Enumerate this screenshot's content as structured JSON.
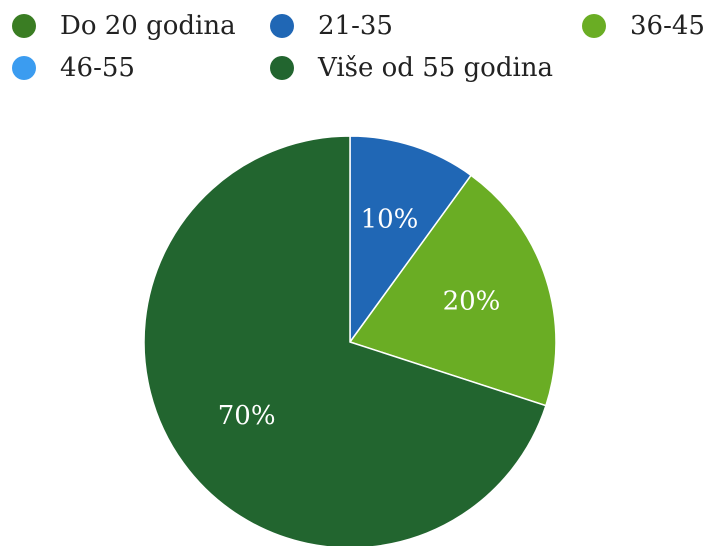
{
  "chart_data": {
    "type": "pie",
    "categories": [
      "Do 20 godina",
      "21-35",
      "36-45",
      "46-55",
      "Više od 55 godina"
    ],
    "values": [
      0,
      10,
      20,
      0,
      70
    ],
    "value_labels": [
      "",
      "10%",
      "20%",
      "",
      "70%"
    ],
    "colors": [
      "#3a7d23",
      "#2067b5",
      "#6aad24",
      "#3b9cf0",
      "#22652f"
    ],
    "legend_position": "top",
    "slice_label_color": "#ffffff"
  },
  "legend": {
    "items": [
      {
        "label": "Do 20 godina",
        "color": "#3a7d23"
      },
      {
        "label": "21-35",
        "color": "#2067b5"
      },
      {
        "label": "36-45",
        "color": "#6aad24"
      },
      {
        "label": "46-55",
        "color": "#3b9cf0"
      },
      {
        "label": "Više od 55 godina",
        "color": "#22652f"
      }
    ]
  }
}
